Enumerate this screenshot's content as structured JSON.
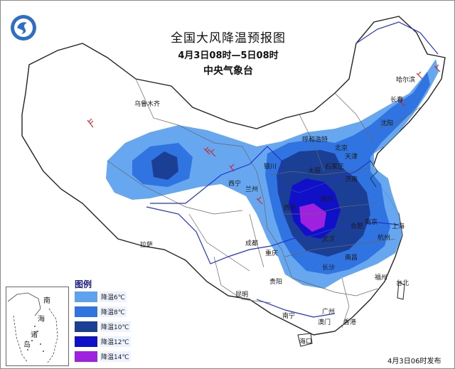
{
  "header": {
    "title": "全国大风降温预报图",
    "period": "4月3日08时—5日08时",
    "agency": "中央气象台"
  },
  "legend": {
    "title": "图例",
    "items": [
      {
        "label": "降温6℃",
        "color": "#5ea2ef"
      },
      {
        "label": "降温8℃",
        "color": "#2f74e0"
      },
      {
        "label": "降温10℃",
        "color": "#1c3f96"
      },
      {
        "label": "降温12℃",
        "color": "#1010c8"
      },
      {
        "label": "降温14℃",
        "color": "#a020e0"
      }
    ]
  },
  "inset": {
    "labels": [
      "南",
      "海",
      "诸",
      "岛"
    ]
  },
  "cities": [
    {
      "id": "urumqi",
      "name": "乌鲁木齐"
    },
    {
      "id": "harbin",
      "name": "哈尔滨"
    },
    {
      "id": "changchun",
      "name": "长春"
    },
    {
      "id": "shenyang",
      "name": "沈阳"
    },
    {
      "id": "hohhot",
      "name": "呼和浩特"
    },
    {
      "id": "beijing",
      "name": "北京"
    },
    {
      "id": "tianjin",
      "name": "天津"
    },
    {
      "id": "shijiazhuang",
      "name": "石家庄"
    },
    {
      "id": "taiyuan",
      "name": "太原"
    },
    {
      "id": "jinan",
      "name": "济南"
    },
    {
      "id": "yinchuan",
      "name": "银川"
    },
    {
      "id": "lanzhou",
      "name": "兰州"
    },
    {
      "id": "xining",
      "name": "西宁"
    },
    {
      "id": "zhengzhou",
      "name": "郑州"
    },
    {
      "id": "xian",
      "name": "西安"
    },
    {
      "id": "nanjing",
      "name": "南京"
    },
    {
      "id": "hefei",
      "name": "合肥"
    },
    {
      "id": "shanghai",
      "name": "上海"
    },
    {
      "id": "hangzhou",
      "name": "杭州"
    },
    {
      "id": "wuhan",
      "name": "武汉"
    },
    {
      "id": "chengdu",
      "name": "成都"
    },
    {
      "id": "chongqing",
      "name": "重庆"
    },
    {
      "id": "lhasa",
      "name": "拉萨"
    },
    {
      "id": "nanchang",
      "name": "南昌"
    },
    {
      "id": "changsha",
      "name": "长沙"
    },
    {
      "id": "guiyang",
      "name": "贵阳"
    },
    {
      "id": "kunming",
      "name": "昆明"
    },
    {
      "id": "fuzhou",
      "name": "福州"
    },
    {
      "id": "taibei",
      "name": "台北"
    },
    {
      "id": "guangzhou",
      "name": "广州"
    },
    {
      "id": "nanning",
      "name": "南宁"
    },
    {
      "id": "haikou",
      "name": "海口"
    },
    {
      "id": "hongkong",
      "name": "香港"
    },
    {
      "id": "macau",
      "name": "澳门"
    }
  ],
  "footer": {
    "release": "4月3日06时发布"
  }
}
